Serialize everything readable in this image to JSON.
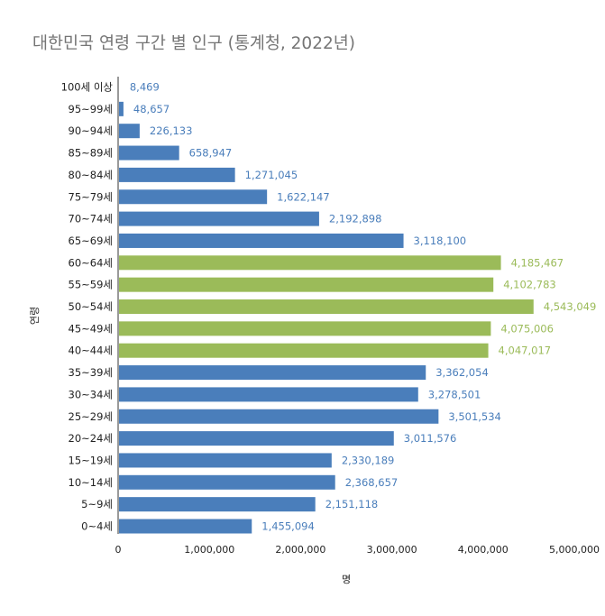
{
  "chart_data": {
    "type": "bar",
    "orientation": "horizontal",
    "title": "대한민국 연령 구간 별 인구 (통계청, 2022년)",
    "xlabel": "명",
    "ylabel": "연령",
    "xlim": [
      0,
      5000000
    ],
    "x_ticks": [
      "0",
      "1,000,000",
      "2,000,000",
      "3,000,000",
      "4,000,000",
      "5,000,000"
    ],
    "grid": false,
    "legend": "none",
    "colors": {
      "default": "#4a7ebb",
      "highlight": "#9bbb59"
    },
    "categories": [
      "100세 이상",
      "95~99세",
      "90~94세",
      "85~89세",
      "80~84세",
      "75~79세",
      "70~74세",
      "65~69세",
      "60~64세",
      "55~59세",
      "50~54세",
      "45~49세",
      "40~44세",
      "35~39세",
      "30~34세",
      "25~29세",
      "20~24세",
      "15~19세",
      "10~14세",
      "5~9세",
      "0~4세"
    ],
    "values": [
      8469,
      48657,
      226133,
      658947,
      1271045,
      1622147,
      2192898,
      3118100,
      4185467,
      4102783,
      4543049,
      4075006,
      4047017,
      3362054,
      3278501,
      3501534,
      3011576,
      2330189,
      2368657,
      2151118,
      1455094
    ],
    "value_labels": [
      "8,469",
      "48,657",
      "226,133",
      "658,947",
      "1,271,045",
      "1,622,147",
      "2,192,898",
      "3,118,100",
      "4,185,467",
      "4,102,783",
      "4,543,049",
      "4,075,006",
      "4,047,017",
      "3,362,054",
      "3,278,501",
      "3,501,534",
      "3,011,576",
      "2,330,189",
      "2,368,657",
      "2,151,118",
      "1,455,094"
    ],
    "highlighted": [
      false,
      false,
      false,
      false,
      false,
      false,
      false,
      false,
      true,
      true,
      true,
      true,
      true,
      false,
      false,
      false,
      false,
      false,
      false,
      false,
      false
    ]
  }
}
